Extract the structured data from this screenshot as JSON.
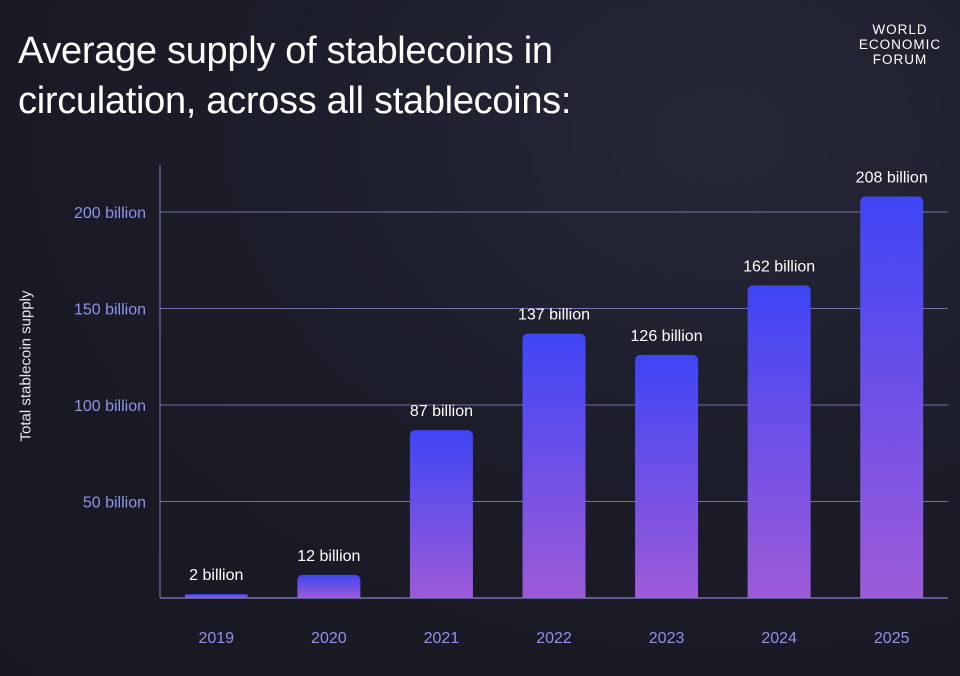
{
  "chart_data": {
    "type": "bar",
    "title_lines": [
      "Average supply of stablecoins in",
      "circulation, across all stablecoins:"
    ],
    "source_logo": [
      "WORLD",
      "ECONOMIC",
      "FORUM"
    ],
    "ylabel": "Total stablecoin supply",
    "xlabel": "",
    "ylim": [
      0,
      225
    ],
    "yticks": [
      {
        "value": 50,
        "label": "50 billion"
      },
      {
        "value": 100,
        "label": "100 billion"
      },
      {
        "value": 150,
        "label": "150 billion"
      },
      {
        "value": 200,
        "label": "200 billion"
      }
    ],
    "categories": [
      "2019",
      "2020",
      "2021",
      "2022",
      "2023",
      "2024",
      "2025"
    ],
    "values": [
      2,
      12,
      87,
      137,
      126,
      162,
      208
    ],
    "value_labels": [
      "2 billion",
      "12 billion",
      "87 billion",
      "137 billion",
      "126 billion",
      "162 billion",
      "208 billion"
    ],
    "grid": true,
    "legend": "none",
    "colors": {
      "bar_top": "#3f45f5",
      "bar_bottom": "#9d5bd8",
      "gridline": "#8c8fd6",
      "tick_text": "#8f93ea",
      "value_text": "#ffffff"
    }
  }
}
